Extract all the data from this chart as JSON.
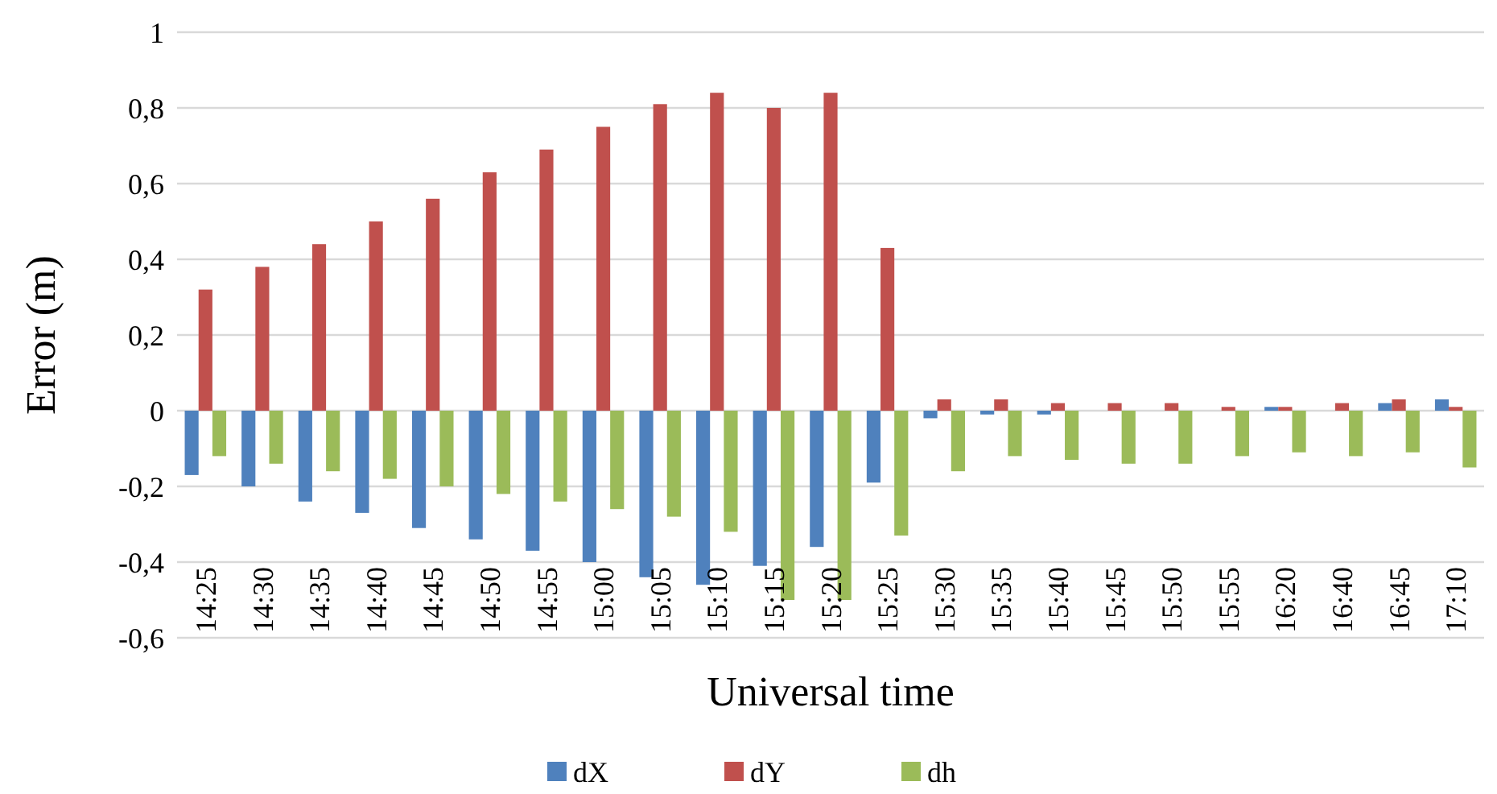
{
  "chart_data": {
    "type": "bar",
    "xlabel": "Universal time",
    "ylabel": "Error (m)",
    "categories": [
      "14:25",
      "14:30",
      "14:35",
      "14:40",
      "14:45",
      "14:50",
      "14:55",
      "15:00",
      "15:05",
      "15:10",
      "15:15",
      "15:20",
      "15:25",
      "15:30",
      "15:35",
      "15:40",
      "15:45",
      "15:50",
      "15:55",
      "16:20",
      "16:40",
      "16:45",
      "17:10"
    ],
    "series": [
      {
        "name": "dX",
        "color": "#4f81bd",
        "values": [
          -0.17,
          -0.2,
          -0.24,
          -0.27,
          -0.31,
          -0.34,
          -0.37,
          -0.4,
          -0.44,
          -0.46,
          -0.41,
          -0.36,
          -0.19,
          -0.02,
          -0.01,
          -0.01,
          0,
          0,
          0,
          0.01,
          0,
          0.02,
          0.03
        ]
      },
      {
        "name": "dY",
        "color": "#c0504d",
        "values": [
          0.32,
          0.38,
          0.44,
          0.5,
          0.56,
          0.63,
          0.69,
          0.75,
          0.81,
          0.84,
          0.8,
          0.84,
          0.43,
          0.03,
          0.03,
          0.02,
          0.02,
          0.02,
          0.01,
          0.01,
          0.02,
          0.03,
          0.01
        ]
      },
      {
        "name": "dh",
        "color": "#9bbb59",
        "values": [
          -0.12,
          -0.14,
          -0.16,
          -0.18,
          -0.2,
          -0.22,
          -0.24,
          -0.26,
          -0.28,
          -0.32,
          -0.5,
          -0.5,
          -0.33,
          -0.16,
          -0.12,
          -0.13,
          -0.14,
          -0.14,
          -0.12,
          -0.11,
          -0.12,
          -0.11,
          -0.15
        ]
      }
    ],
    "ylim": [
      -0.6,
      1
    ],
    "yticks": [
      {
        "value": -0.6,
        "label": "-0,6"
      },
      {
        "value": -0.4,
        "label": "-0,4"
      },
      {
        "value": -0.2,
        "label": "-0,2"
      },
      0,
      {
        "value": 0.2,
        "label": "0,2"
      },
      {
        "value": 0.4,
        "label": "0,4"
      },
      {
        "value": 0.6,
        "label": "0,6"
      },
      {
        "value": 0.8,
        "label": "0,8"
      },
      1
    ],
    "grid": "y",
    "legend": "bottom"
  }
}
